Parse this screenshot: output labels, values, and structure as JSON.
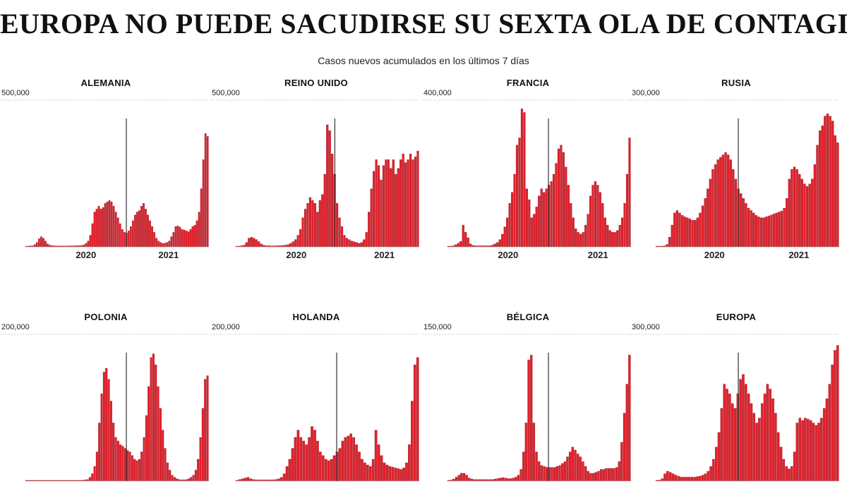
{
  "header": {
    "title": "EUROPA NO PUEDE SACUDIRSE SU SEXTA OLA DE CONTAGIOS",
    "subtitle": "Casos nuevos acumulados en los últimos 7 días"
  },
  "colors": {
    "bar": "#e0222d",
    "bar_edge": "#8a0d15",
    "marker": "#333333",
    "grid": "#cccccc"
  },
  "chart_data": [
    {
      "type": "bar",
      "title": "ALEMANIA",
      "ylim": [
        0,
        500000
      ],
      "ymax_label": "500,000",
      "x_ticks": [
        "2020",
        "2021"
      ],
      "values": [
        1000,
        1500,
        3500,
        3500,
        8000,
        15000,
        28000,
        35000,
        30000,
        20000,
        10000,
        6000,
        4000,
        3500,
        3000,
        3000,
        3000,
        3000,
        3000,
        3000,
        3500,
        3500,
        3500,
        4000,
        4000,
        4000,
        5000,
        7000,
        12000,
        20000,
        40000,
        80000,
        120000,
        130000,
        140000,
        130000,
        135000,
        150000,
        155000,
        160000,
        155000,
        140000,
        120000,
        100000,
        80000,
        60000,
        50000,
        48000,
        55000,
        70000,
        90000,
        110000,
        120000,
        125000,
        140000,
        150000,
        130000,
        110000,
        90000,
        70000,
        50000,
        30000,
        20000,
        15000,
        12000,
        13000,
        15000,
        20000,
        35000,
        50000,
        70000,
        72000,
        68000,
        60000,
        58000,
        55000,
        52000,
        60000,
        70000,
        75000,
        90000,
        120000,
        200000,
        300000,
        390000,
        380000
      ]
    },
    {
      "type": "bar",
      "title": "REINO UNIDO",
      "ylim": [
        0,
        500000
      ],
      "ymax_label": "500,000",
      "x_ticks": [
        "2020",
        "2021"
      ],
      "values": [
        1000,
        2000,
        4000,
        6000,
        15000,
        30000,
        33000,
        30000,
        25000,
        18000,
        10000,
        6000,
        4000,
        4000,
        3500,
        3500,
        3500,
        4000,
        4000,
        5000,
        6000,
        8000,
        12000,
        18000,
        25000,
        40000,
        60000,
        100000,
        130000,
        150000,
        170000,
        160000,
        150000,
        120000,
        160000,
        180000,
        250000,
        420000,
        400000,
        320000,
        250000,
        150000,
        100000,
        70000,
        40000,
        30000,
        25000,
        20000,
        18000,
        15000,
        12000,
        15000,
        25000,
        50000,
        120000,
        200000,
        260000,
        300000,
        280000,
        230000,
        280000,
        300000,
        300000,
        270000,
        300000,
        250000,
        270000,
        300000,
        320000,
        290000,
        300000,
        320000,
        300000,
        310000,
        330000
      ]
    },
    {
      "type": "bar",
      "title": "FRANCIA",
      "ylim": [
        0,
        400000
      ],
      "ymax_label": "400,000",
      "x_ticks": [
        "2020",
        "2021"
      ],
      "values": [
        1000,
        2000,
        3000,
        6000,
        10000,
        15000,
        60000,
        40000,
        25000,
        8000,
        4000,
        3000,
        3000,
        3000,
        3000,
        3000,
        3000,
        3000,
        5000,
        8000,
        12000,
        20000,
        35000,
        55000,
        80000,
        120000,
        150000,
        200000,
        280000,
        300000,
        380000,
        370000,
        160000,
        130000,
        80000,
        90000,
        110000,
        140000,
        160000,
        150000,
        160000,
        170000,
        180000,
        200000,
        230000,
        270000,
        280000,
        260000,
        220000,
        170000,
        120000,
        80000,
        50000,
        40000,
        35000,
        40000,
        60000,
        90000,
        140000,
        170000,
        180000,
        170000,
        150000,
        120000,
        80000,
        60000,
        45000,
        40000,
        40000,
        45000,
        60000,
        80000,
        120000,
        200000,
        300000
      ]
    },
    {
      "type": "bar",
      "title": "RUSIA",
      "ylim": [
        0,
        300000
      ],
      "ymax_label": "300,000",
      "x_ticks": [
        "2020",
        "2021"
      ],
      "values": [
        1000,
        1000,
        1500,
        2000,
        5000,
        20000,
        45000,
        70000,
        75000,
        70000,
        65000,
        62000,
        60000,
        58000,
        55000,
        55000,
        60000,
        70000,
        85000,
        100000,
        120000,
        140000,
        160000,
        170000,
        180000,
        185000,
        190000,
        195000,
        190000,
        180000,
        160000,
        140000,
        120000,
        110000,
        100000,
        90000,
        80000,
        75000,
        70000,
        65000,
        62000,
        60000,
        60000,
        62000,
        64000,
        66000,
        68000,
        70000,
        72000,
        74000,
        80000,
        100000,
        140000,
        160000,
        165000,
        160000,
        150000,
        140000,
        130000,
        125000,
        130000,
        140000,
        170000,
        210000,
        240000,
        250000,
        270000,
        275000,
        270000,
        260000,
        230000,
        215000
      ]
    },
    {
      "type": "bar",
      "title": "POLONIA",
      "ylim": [
        0,
        200000
      ],
      "ymax_label": "200,000",
      "x_ticks": [],
      "values": [
        500,
        500,
        500,
        500,
        500,
        500,
        500,
        500,
        500,
        500,
        500,
        500,
        500,
        500,
        500,
        500,
        500,
        500,
        500,
        500,
        500,
        600,
        700,
        800,
        1000,
        1500,
        2000,
        5000,
        10000,
        20000,
        40000,
        80000,
        120000,
        150000,
        155000,
        140000,
        110000,
        80000,
        60000,
        55000,
        50000,
        48000,
        45000,
        42000,
        40000,
        35000,
        30000,
        28000,
        30000,
        40000,
        60000,
        90000,
        130000,
        170000,
        175000,
        160000,
        130000,
        100000,
        70000,
        45000,
        25000,
        15000,
        8000,
        5000,
        3000,
        2000,
        1500,
        1500,
        2000,
        3000,
        5000,
        8000,
        15000,
        30000,
        60000,
        100000,
        140000,
        145000
      ]
    },
    {
      "type": "bar",
      "title": "HOLANDA",
      "ylim": [
        0,
        200000
      ],
      "ymax_label": "200,000",
      "x_ticks": [],
      "values": [
        1000,
        2000,
        3000,
        4000,
        5000,
        3000,
        2000,
        1500,
        1500,
        1500,
        1500,
        1500,
        1500,
        1500,
        2000,
        3000,
        5000,
        10000,
        20000,
        30000,
        45000,
        60000,
        70000,
        60000,
        55000,
        50000,
        60000,
        75000,
        70000,
        55000,
        40000,
        35000,
        30000,
        28000,
        30000,
        35000,
        40000,
        45000,
        55000,
        60000,
        62000,
        65000,
        60000,
        50000,
        40000,
        30000,
        25000,
        22000,
        20000,
        30000,
        70000,
        50000,
        35000,
        25000,
        22000,
        20000,
        19000,
        18000,
        17000,
        16000,
        18000,
        25000,
        50000,
        110000,
        160000,
        170000
      ]
    },
    {
      "type": "bar",
      "title": "BÉLGICA",
      "ylim": [
        0,
        150000
      ],
      "ymax_label": "150,000",
      "x_ticks": [],
      "values": [
        500,
        1000,
        2000,
        4000,
        6000,
        8000,
        8000,
        6000,
        3000,
        2000,
        1500,
        1500,
        1500,
        1500,
        1500,
        1500,
        1500,
        1500,
        2000,
        2500,
        3000,
        3500,
        3000,
        2500,
        2500,
        3000,
        4000,
        6000,
        12000,
        30000,
        60000,
        125000,
        130000,
        60000,
        30000,
        20000,
        16000,
        15000,
        14000,
        14000,
        14000,
        14000,
        15000,
        16000,
        18000,
        20000,
        25000,
        30000,
        35000,
        32000,
        28000,
        25000,
        20000,
        15000,
        10000,
        8000,
        8000,
        9000,
        10000,
        12000,
        12000,
        13000,
        13000,
        13000,
        13000,
        14000,
        20000,
        40000,
        70000,
        100000,
        130000
      ]
    },
    {
      "type": "bar",
      "title": "EUROPA",
      "ylim": [
        0,
        300000
      ],
      "ymax_label": "300,000",
      "x_ticks": [],
      "values": [
        1000,
        2000,
        5000,
        15000,
        20000,
        18000,
        15000,
        12000,
        10000,
        8000,
        8000,
        8000,
        8000,
        8000,
        8000,
        9000,
        10000,
        12000,
        15000,
        20000,
        30000,
        45000,
        70000,
        100000,
        150000,
        200000,
        190000,
        180000,
        160000,
        150000,
        180000,
        210000,
        220000,
        200000,
        180000,
        160000,
        140000,
        120000,
        130000,
        160000,
        180000,
        200000,
        190000,
        170000,
        140000,
        100000,
        70000,
        45000,
        30000,
        25000,
        30000,
        60000,
        120000,
        130000,
        125000,
        130000,
        128000,
        125000,
        120000,
        115000,
        120000,
        130000,
        150000,
        170000,
        200000,
        240000,
        270000,
        280000
      ]
    }
  ]
}
